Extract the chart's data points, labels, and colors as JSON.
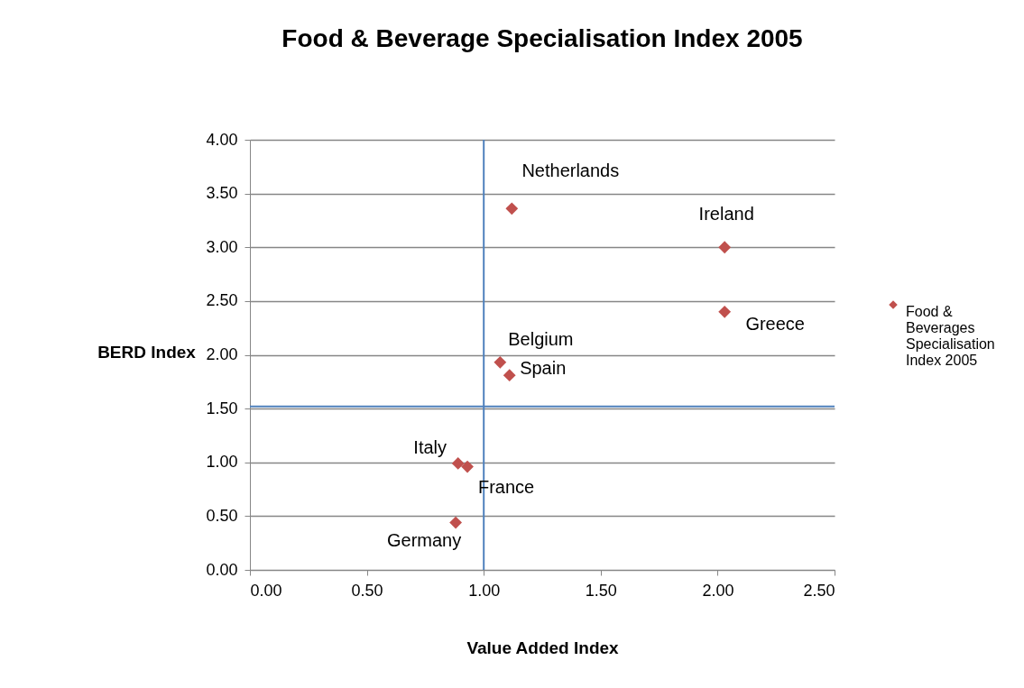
{
  "chart_data": {
    "type": "scatter",
    "title": "Food & Beverage Specialisation Index 2005",
    "xlabel": "Value Added Index",
    "ylabel": "BERD Index",
    "x": [
      1.12,
      2.03,
      2.03,
      1.07,
      1.11,
      0.89,
      0.93,
      0.88
    ],
    "series": [
      {
        "name": "Food & Beverages Specialisation Index 2005",
        "color": "#c0504d",
        "values": [
          3.36,
          3.0,
          2.4,
          1.93,
          1.81,
          0.99,
          0.96,
          0.44
        ]
      }
    ],
    "annotations": [
      {
        "text": "Netherlands",
        "x": 1.12,
        "y": 3.36
      },
      {
        "text": "Ireland",
        "x": 2.03,
        "y": 3.0
      },
      {
        "text": "Greece",
        "x": 2.03,
        "y": 2.4
      },
      {
        "text": "Belgium",
        "x": 1.07,
        "y": 1.93
      },
      {
        "text": "Spain",
        "x": 1.11,
        "y": 1.81
      },
      {
        "text": "Italy",
        "x": 0.89,
        "y": 0.99
      },
      {
        "text": "France",
        "x": 0.93,
        "y": 0.96
      },
      {
        "text": "Germany",
        "x": 0.88,
        "y": 0.44
      }
    ],
    "ref_lines": [
      {
        "axis": "x",
        "value": 1.0,
        "color": "#4f81bd"
      },
      {
        "axis": "y",
        "value": 1.52,
        "color": "#4f81bd"
      }
    ],
    "xlim": [
      0,
      2.5
    ],
    "xticks": [
      {
        "value": 0,
        "label": "0.00"
      },
      {
        "value": 0.5,
        "label": "0.50"
      },
      {
        "value": 1,
        "label": "1.00"
      },
      {
        "value": 1.5,
        "label": "1.50"
      },
      {
        "value": 2,
        "label": "2.00"
      },
      {
        "value": 2.5,
        "label": "2.50"
      }
    ],
    "ylim": [
      0,
      4
    ],
    "yticks": [
      {
        "value": 0,
        "label": "0.00"
      },
      {
        "value": 0.5,
        "label": "0.50"
      },
      {
        "value": 1,
        "label": "1.00"
      },
      {
        "value": 1.5,
        "label": "1.50"
      },
      {
        "value": 2,
        "label": "2.00"
      },
      {
        "value": 2.5,
        "label": "2.50"
      },
      {
        "value": 3,
        "label": "3.00"
      },
      {
        "value": 3.5,
        "label": "3.50"
      },
      {
        "value": 4,
        "label": "4.00"
      }
    ],
    "grid": "y",
    "legend": "right",
    "marker": "diamond"
  }
}
